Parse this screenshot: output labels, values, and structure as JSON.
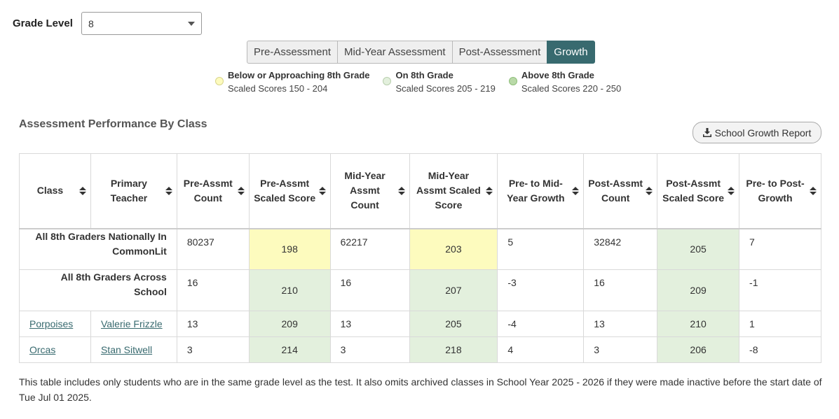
{
  "grade": {
    "label": "Grade Level",
    "value": "8"
  },
  "tabs": [
    {
      "label": "Pre-Assessment"
    },
    {
      "label": "Mid-Year Assessment"
    },
    {
      "label": "Post-Assessment"
    },
    {
      "label": "Growth"
    }
  ],
  "legend": [
    {
      "title": "Below or Approaching 8th Grade",
      "range": "Scaled Scores 150 - 204",
      "color": "#fdfbbe"
    },
    {
      "title": "On 8th Grade",
      "range": "Scaled Scores 205 - 219",
      "color": "#e3f0dd"
    },
    {
      "title": "Above 8th Grade",
      "range": "Scaled Scores 220 - 250",
      "color": "#b9d9a8"
    }
  ],
  "section_title": "Assessment Performance By Class",
  "report_button": "School Growth Report",
  "table": {
    "headers": [
      "Class",
      "Primary Teacher",
      "Pre-Assmt Count",
      "Pre-Assmt Scaled Score",
      "Mid-Year Assmt Count",
      "Mid-Year Assmt Scaled Score",
      "Pre- to Mid-Year Growth",
      "Post-Assmt Count",
      "Post-Assmt Scaled Score",
      "Pre- to Post-Growth"
    ],
    "rows": [
      {
        "label": "All 8th Graders Nationally In CommonLit",
        "pre_count": "80237",
        "pre_score": "198",
        "mid_count": "62217",
        "mid_score": "203",
        "pre_mid_growth": "5",
        "post_count": "32842",
        "post_score": "205",
        "pre_post_growth": "7"
      },
      {
        "label": "All 8th Graders Across School",
        "pre_count": "16",
        "pre_score": "210",
        "mid_count": "16",
        "mid_score": "207",
        "pre_mid_growth": "-3",
        "post_count": "16",
        "post_score": "209",
        "pre_post_growth": "-1"
      },
      {
        "class": "Porpoises",
        "teacher": "Valerie Frizzle",
        "pre_count": "13",
        "pre_score": "209",
        "mid_count": "13",
        "mid_score": "205",
        "pre_mid_growth": "-4",
        "post_count": "13",
        "post_score": "210",
        "pre_post_growth": "1"
      },
      {
        "class": "Orcas",
        "teacher": "Stan Sitwell",
        "pre_count": "3",
        "pre_score": "214",
        "mid_count": "3",
        "mid_score": "218",
        "pre_mid_growth": "4",
        "post_count": "3",
        "post_score": "206",
        "pre_post_growth": "-8"
      }
    ]
  },
  "footnote": "This table includes only students who are in the same grade level as the test. It also omits archived classes in School Year 2025 - 2026 if they were made inactive before the start date of Tue Jul 01 2025."
}
